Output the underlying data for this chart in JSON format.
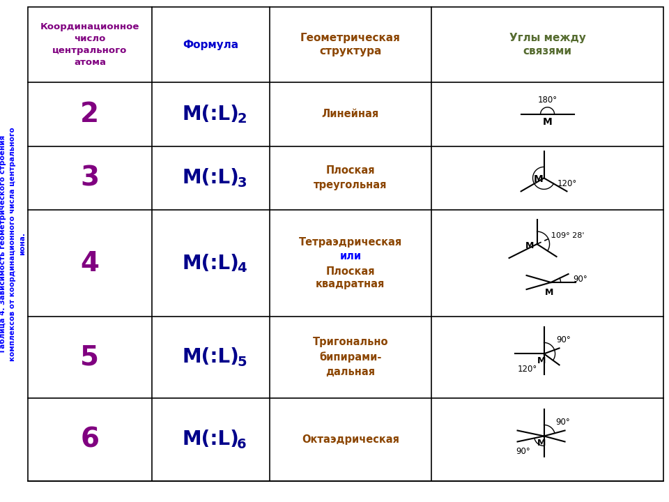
{
  "title_line1": "Таблица 4. Зависимость геометрического строения",
  "title_line2": "комплексов от координационного числа центрального",
  "title_line3": "иона.",
  "title_color": "#0000FF",
  "bg_color": "#FFFFFF",
  "header": {
    "col1": "Координационное\nчисло\nцентрального\nатома",
    "col2": "Формула",
    "col3": "Геометрическая\nструктура",
    "col4": "Углы между\nсвязями",
    "col1_color": "#800080",
    "col2_color": "#0000CD",
    "col3_color": "#8B4500",
    "col4_color": "#556B2F"
  },
  "rows": [
    {
      "cn": "2",
      "formula_main": "M(:L)",
      "formula_sub": "2",
      "geometry": "Линейная"
    },
    {
      "cn": "3",
      "formula_main": "M(:L)",
      "formula_sub": "3",
      "geometry": "Плоская\nтреугольная"
    },
    {
      "cn": "4",
      "formula_main": "M(:L)",
      "formula_sub": "4",
      "geometry": "Тетраэдрическая\nили\nПлоская\nквадратная"
    },
    {
      "cn": "5",
      "formula_main": "M(:L)",
      "formula_sub": "5",
      "geometry": "Тригонально\nбипирами-\nдальная"
    },
    {
      "cn": "6",
      "formula_main": "M(:L)",
      "formula_sub": "6",
      "geometry": "Октаэдрическая"
    }
  ],
  "cn_color": "#800080",
  "formula_color": "#00008B",
  "geom_color": "#8B4500",
  "ili_color": "#0000FF",
  "table_line_color": "#000000"
}
